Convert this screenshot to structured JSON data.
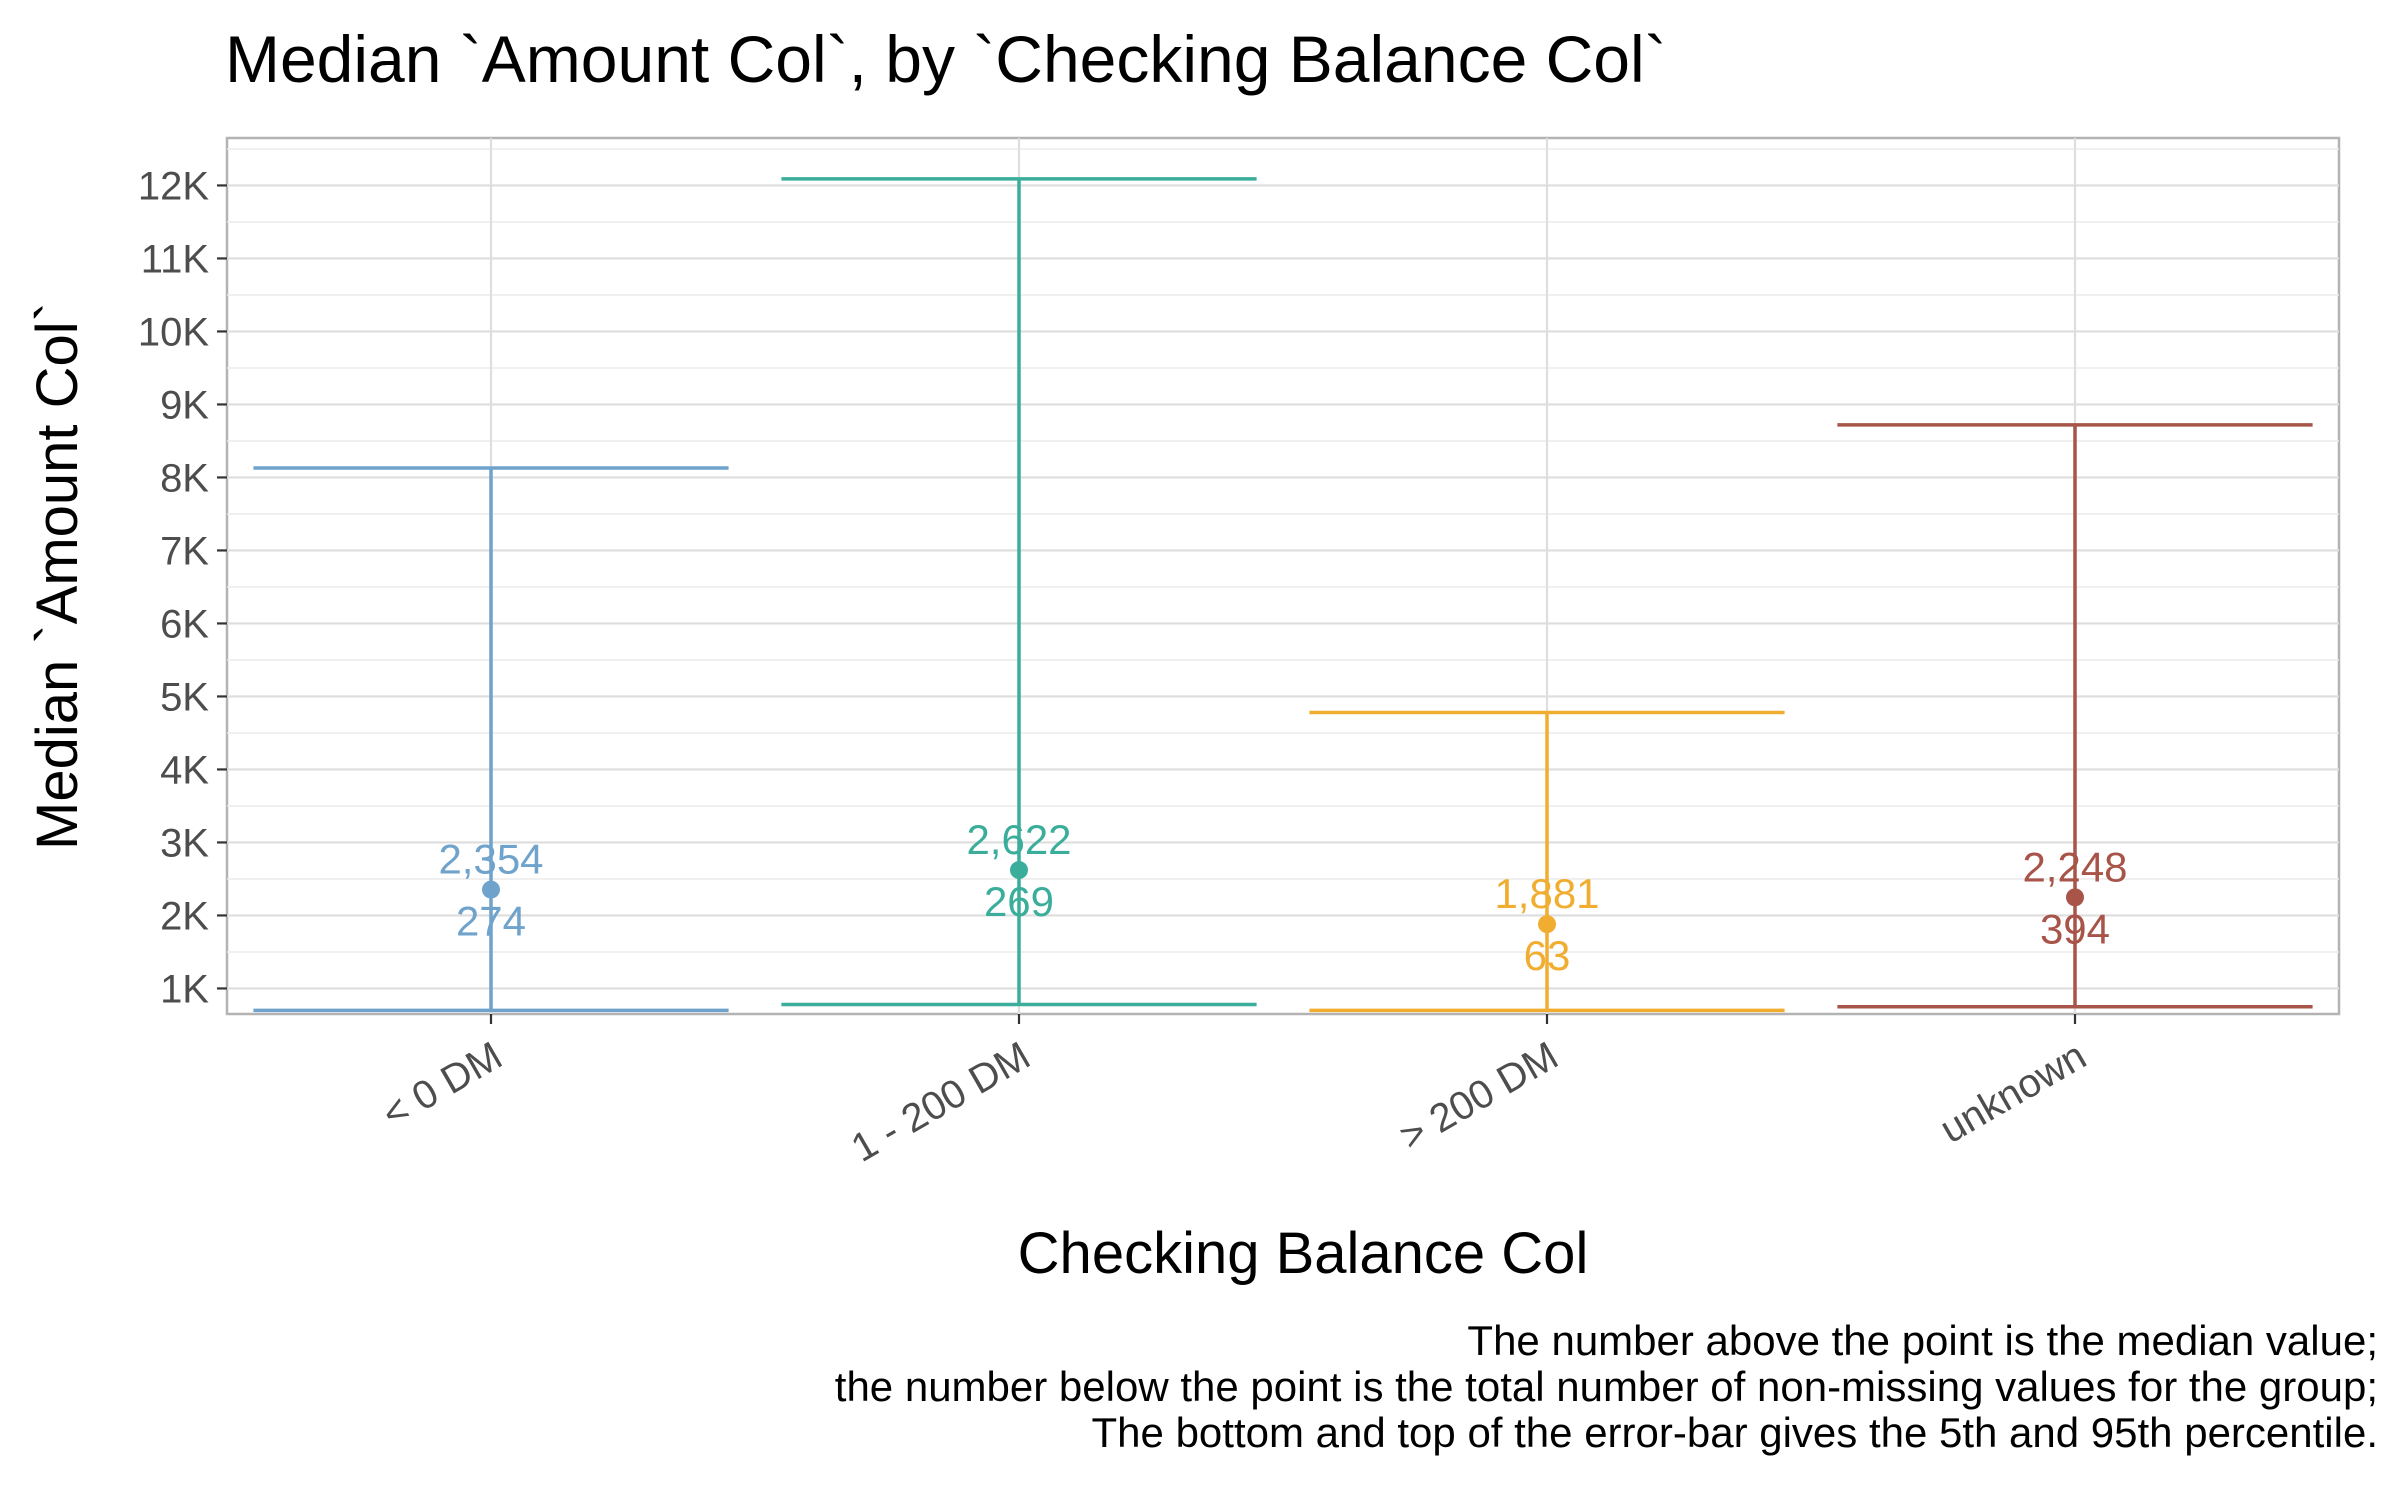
{
  "chart_data": {
    "type": "errorbar",
    "title": "Median `Amount Col`, by `Checking Balance Col`",
    "xlabel": "Checking Balance Col",
    "ylabel": "Median `Amount Col`",
    "ylim": [
      650,
      12650
    ],
    "yticks": [
      1000,
      2000,
      3000,
      4000,
      5000,
      6000,
      7000,
      8000,
      9000,
      10000,
      11000,
      12000
    ],
    "ytick_labels": [
      "1K",
      "2K",
      "3K",
      "4K",
      "5K",
      "6K",
      "7K",
      "8K",
      "9K",
      "10K",
      "11K",
      "12K"
    ],
    "grid": true,
    "categories": [
      "< 0 DM",
      "1 - 200 DM",
      "> 200 DM",
      "unknown"
    ],
    "series": [
      {
        "category": "< 0 DM",
        "median": 2354,
        "median_label": "2,354",
        "count": 274,
        "count_label": "274",
        "p5": 700,
        "p95": 8130,
        "color": "#6FA3CC"
      },
      {
        "category": "1 - 200 DM",
        "median": 2622,
        "median_label": "2,622",
        "count": 269,
        "count_label": "269",
        "p5": 780,
        "p95": 12090,
        "color": "#3AAE9A"
      },
      {
        "category": "> 200 DM",
        "median": 1881,
        "median_label": "1,881",
        "count": 63,
        "count_label": "63",
        "p5": 700,
        "p95": 4780,
        "color": "#F0AD30"
      },
      {
        "category": "unknown",
        "median": 2248,
        "median_label": "2,248",
        "count": 394,
        "count_label": "394",
        "p5": 750,
        "p95": 8720,
        "color": "#A85448"
      }
    ],
    "caption": [
      "The number above the point is the median value;",
      "the number below the point is the total number of non-missing values for the group;",
      "The bottom and top of the error-bar gives the 5th and 95th percentile."
    ]
  }
}
